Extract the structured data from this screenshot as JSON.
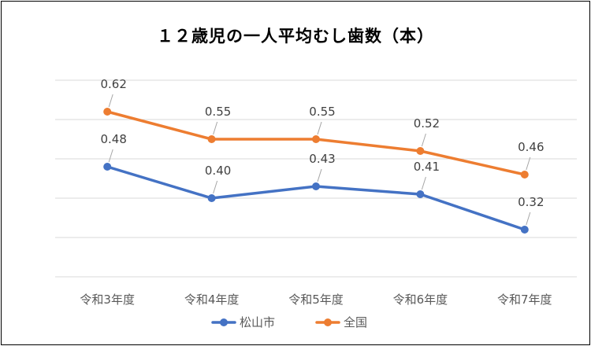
{
  "chart_data": {
    "type": "line",
    "title": "１２歳児の一人平均むし歯数（本）",
    "categories": [
      "令和3年度",
      "令和4年度",
      "令和5年度",
      "令和6年度",
      "令和7年度"
    ],
    "series": [
      {
        "name": "松山市",
        "values": [
          0.48,
          0.4,
          0.43,
          0.41,
          0.32
        ],
        "color": "#4472C4"
      },
      {
        "name": "全国",
        "values": [
          0.62,
          0.55,
          0.55,
          0.52,
          0.46
        ],
        "color": "#ED7D31"
      }
    ],
    "ylim": [
      0.2,
      0.7
    ],
    "grid": true,
    "legend": "bottom"
  }
}
